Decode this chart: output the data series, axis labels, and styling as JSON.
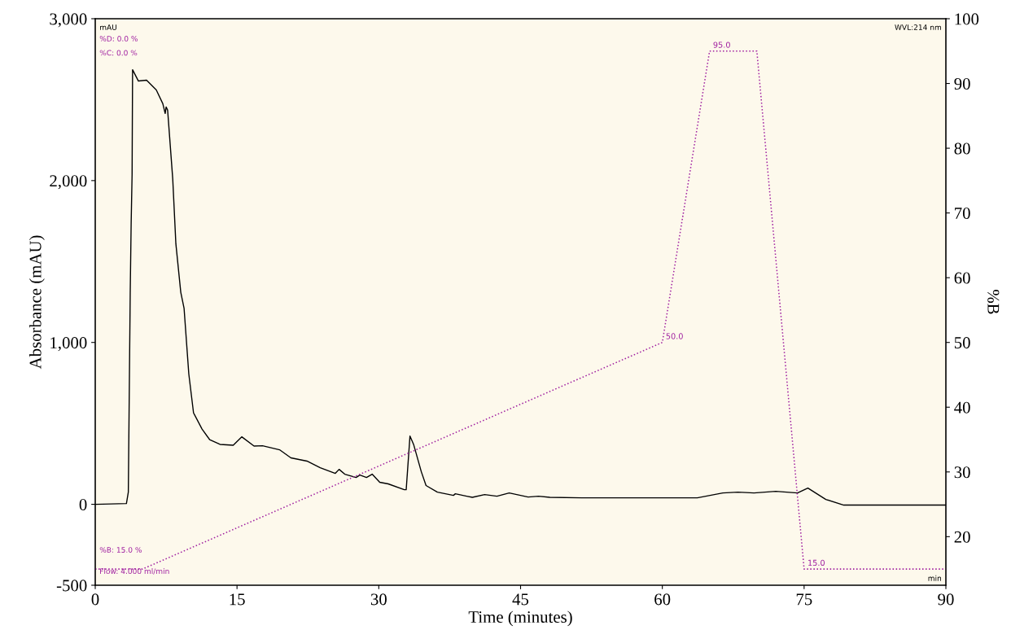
{
  "chart_data": {
    "type": "line",
    "xlabel": "Time (minutes)",
    "ylabel": "Absorbance (mAU)",
    "y2label": "%B",
    "xlim": [
      0,
      90
    ],
    "xticks": [
      0,
      15,
      30,
      45,
      60,
      75,
      90
    ],
    "ylim": [
      -500,
      3000
    ],
    "yticks": [
      -500,
      0,
      {
        "value": 1000,
        "label": "1,000"
      },
      {
        "value": 2000,
        "label": "2,000"
      },
      {
        "value": 3000,
        "label": "3,000"
      }
    ],
    "y2lim": [
      12.5,
      100
    ],
    "y2ticks": [
      20,
      30,
      40,
      50,
      60,
      70,
      80,
      90,
      100
    ],
    "grid": false,
    "legend": false,
    "series": [
      {
        "color": "#000000",
        "line_style": "solid",
        "x": [
          0,
          3.3,
          3.5,
          3.7,
          3.8,
          3.9,
          3.95,
          4.57,
          5.43,
          6.46,
          7.15,
          7.4,
          7.5,
          7.66,
          8.2,
          8.53,
          9.05,
          9.4,
          9.9,
          10.4,
          11.3,
          12.1,
          13.2,
          14.6,
          15.5,
          16.8,
          17.7,
          19.5,
          20.7,
          22.4,
          23.8,
          25.4,
          25.8,
          26.4,
          27.6,
          28.0,
          28.7,
          29.3,
          30.1,
          31.0,
          32.7,
          32.9,
          33.3,
          33.7,
          34.5,
          35.0,
          36.2,
          37.9,
          38.1,
          39.3,
          39.9,
          41.2,
          42.5,
          43.8,
          45.8,
          46.9,
          48.1,
          51.5,
          63.7,
          66.4,
          68.0,
          69.7,
          72.0,
          74.3,
          75.4,
          77.3,
          79.2,
          90
        ],
        "values": [
          0,
          5,
          75,
          1300,
          1735,
          2040,
          2685,
          2615,
          2620,
          2560,
          2475,
          2415,
          2455,
          2435,
          2010,
          1610,
          1310,
          1210,
          805,
          565,
          465,
          400,
          370,
          365,
          417,
          360,
          362,
          337,
          287,
          267,
          226,
          191,
          216,
          186,
          166,
          181,
          166,
          186,
          136,
          126,
          90,
          90,
          422,
          367,
          201,
          116,
          75,
          55,
          65,
          50,
          43,
          60,
          50,
          70,
          45,
          50,
          43,
          40,
          40,
          70,
          75,
          70,
          80,
          70,
          100,
          30,
          -5,
          -5
        ]
      },
      {
        "color": "#a020a0",
        "line_style": "dotted",
        "axis": "y2",
        "x": [
          0,
          5,
          60,
          65,
          70,
          75,
          90
        ],
        "values": [
          15,
          15,
          50,
          95,
          95,
          15,
          15
        ],
        "value_labels": [
          null,
          null,
          "50.0",
          "95.0",
          null,
          "15.0",
          null
        ]
      }
    ],
    "annotations": [
      "mAU",
      "%D: 0.0 %",
      "%C: 0.0 %",
      "WVL:214 nm",
      "%B: 15.0 %",
      "Flow: 4.000 ml/min",
      "min"
    ]
  }
}
